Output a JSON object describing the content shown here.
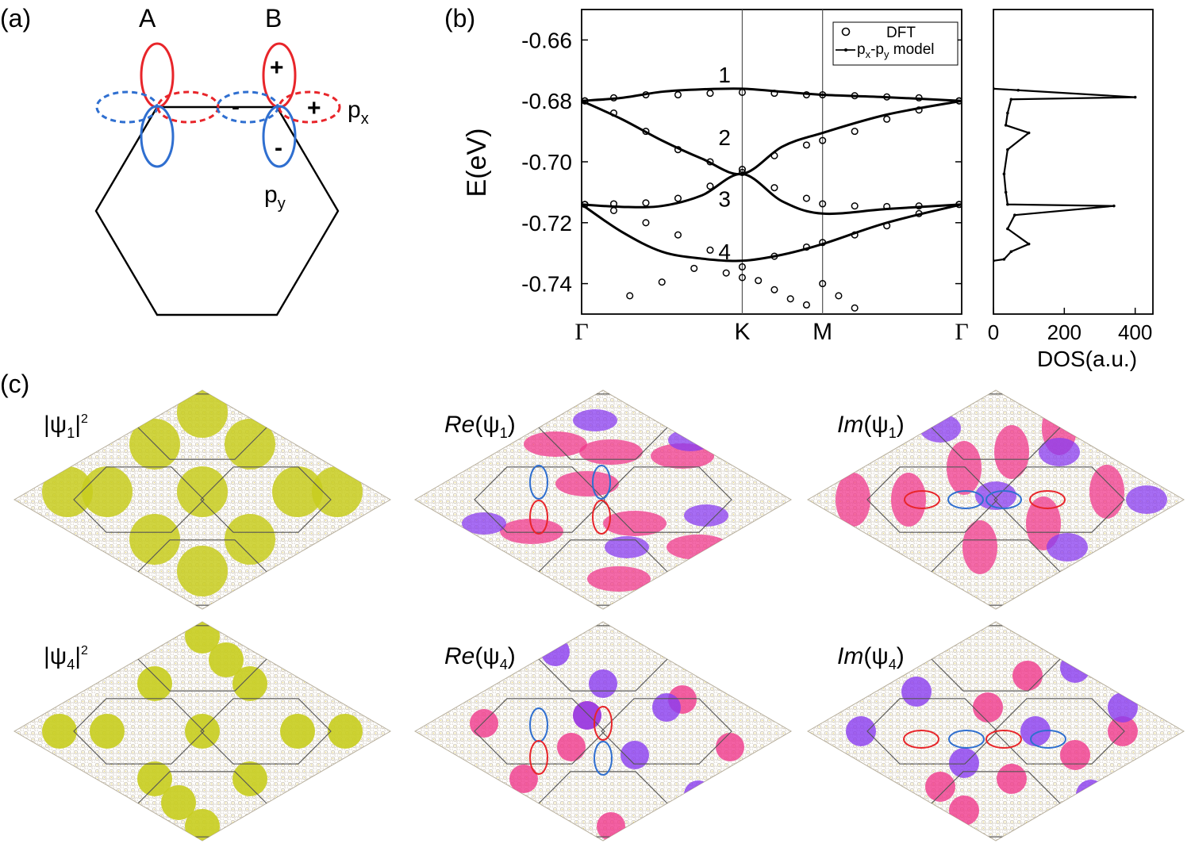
{
  "panels": {
    "a": {
      "label": "(a)",
      "site_a": "A",
      "site_b": "B",
      "plus_top": "+",
      "minus_mid": "-",
      "plus_right": "+",
      "minus_low": "-",
      "px_base": "p",
      "px_sub": "x",
      "py_base": "p",
      "py_sub": "y"
    },
    "b": {
      "label": "(b)"
    },
    "c": {
      "label": "(c)",
      "maps": [
        {
          "prefix": "|ψ",
          "sub": "1",
          "suffix": "|",
          "sup": "2",
          "fill": "#c8cd1e"
        },
        {
          "prefix": "Re",
          "paren_open": "(ψ",
          "sub": "1",
          "paren_close": ")"
        },
        {
          "prefix": "Im",
          "paren_open": "(ψ",
          "sub": "1",
          "paren_close": ")"
        },
        {
          "prefix": "|ψ",
          "sub": "4",
          "suffix": "|",
          "sup": "2",
          "fill": "#c8cd1e"
        },
        {
          "prefix": "Re",
          "paren_open": "(ψ",
          "sub": "4",
          "paren_close": ")"
        },
        {
          "prefix": "Im",
          "paren_open": "(ψ",
          "sub": "4",
          "paren_close": ")"
        }
      ]
    }
  },
  "colors": {
    "red": "#e8252a",
    "blue": "#2f6fd0",
    "pink": "#f0388c",
    "purple": "#8a3cf0",
    "lattice": "#e3dfd6",
    "yellow": "#c8cd1e"
  },
  "chart_data": [
    {
      "type": "line",
      "title": "",
      "ylabel": "E(eV)",
      "xlabel": "",
      "x_ticks": [
        "Γ",
        "K",
        "M",
        "Γ"
      ],
      "x_tick_positions": [
        0,
        1,
        1.5,
        2.366
      ],
      "y_ticks": [
        "-0.66",
        "-0.68",
        "-0.70",
        "-0.72",
        "-0.74"
      ],
      "y_tick_values": [
        -0.66,
        -0.68,
        -0.7,
        -0.72,
        -0.74
      ],
      "ylim": [
        -0.75,
        -0.65
      ],
      "legend": [
        "DFT",
        "px-py model"
      ],
      "legend_display": {
        "dft": "DFT",
        "model_base": "p",
        "model_sub1": "x",
        "model_mid": "-p",
        "model_sub2": "y",
        "model_tail": " model"
      },
      "band_labels": [
        "1",
        "2",
        "3",
        "4"
      ],
      "series": [
        {
          "name": "px-py model band 1",
          "x": [
            0,
            0.25,
            0.5,
            0.75,
            1.0,
            1.25,
            1.5,
            1.9,
            2.366
          ],
          "y": [
            -0.68,
            -0.679,
            -0.677,
            -0.6762,
            -0.676,
            -0.677,
            -0.678,
            -0.6788,
            -0.68
          ]
        },
        {
          "name": "px-py model band 2",
          "x": [
            0,
            0.25,
            0.5,
            0.75,
            1.0,
            1.25,
            1.5,
            1.9,
            2.366
          ],
          "y": [
            -0.68,
            -0.686,
            -0.693,
            -0.699,
            -0.704,
            -0.695,
            -0.6905,
            -0.6845,
            -0.68
          ]
        },
        {
          "name": "px-py model band 3",
          "x": [
            0,
            0.25,
            0.5,
            0.75,
            1.0,
            1.25,
            1.5,
            1.9,
            2.366
          ],
          "y": [
            -0.714,
            -0.7148,
            -0.7145,
            -0.711,
            -0.704,
            -0.713,
            -0.717,
            -0.7155,
            -0.714
          ]
        },
        {
          "name": "px-py model band 4",
          "x": [
            0,
            0.25,
            0.5,
            0.75,
            1.0,
            1.25,
            1.5,
            1.9,
            2.366
          ],
          "y": [
            -0.714,
            -0.723,
            -0.7295,
            -0.7318,
            -0.7325,
            -0.7305,
            -0.727,
            -0.72,
            -0.714
          ]
        },
        {
          "name": "DFT",
          "x": [
            0.02,
            0.2,
            0.4,
            0.6,
            0.8,
            1.0,
            1.2,
            1.4,
            1.5,
            1.7,
            1.9,
            2.1,
            2.35,
            0.02,
            0.2,
            0.4,
            0.6,
            0.8,
            1.0,
            1.2,
            1.4,
            1.5,
            1.7,
            1.9,
            2.1,
            2.35,
            0.02,
            0.2,
            0.4,
            0.6,
            0.8,
            1.0,
            1.2,
            1.4,
            1.5,
            1.7,
            1.9,
            2.1,
            2.35,
            0.02,
            0.2,
            0.4,
            0.6,
            0.8,
            1.0,
            1.2,
            1.4,
            1.5,
            1.7,
            1.9,
            2.1,
            2.35,
            0.3,
            0.5,
            0.7,
            0.9,
            1.0,
            1.1,
            1.2,
            1.3,
            1.4,
            1.5,
            1.6,
            1.7
          ],
          "y": [
            -0.68,
            -0.679,
            -0.678,
            -0.678,
            -0.6775,
            -0.6772,
            -0.6775,
            -0.678,
            -0.678,
            -0.6783,
            -0.6787,
            -0.679,
            -0.68,
            -0.68,
            -0.684,
            -0.69,
            -0.696,
            -0.7,
            -0.7025,
            -0.698,
            -0.6945,
            -0.693,
            -0.69,
            -0.686,
            -0.683,
            -0.68,
            -0.714,
            -0.7138,
            -0.7135,
            -0.712,
            -0.708,
            -0.7035,
            -0.7085,
            -0.712,
            -0.7138,
            -0.7145,
            -0.7147,
            -0.7145,
            -0.714,
            -0.714,
            -0.716,
            -0.72,
            -0.724,
            -0.729,
            -0.7345,
            -0.731,
            -0.728,
            -0.7265,
            -0.724,
            -0.721,
            -0.717,
            -0.714,
            -0.744,
            -0.7395,
            -0.735,
            -0.7365,
            -0.738,
            -0.739,
            -0.742,
            -0.745,
            -0.747,
            -0.74,
            -0.744,
            -0.748
          ]
        }
      ]
    },
    {
      "type": "line",
      "title": "",
      "xlabel": "DOS(a.u.)",
      "ylabel": "",
      "x_ticks": [
        "0",
        "200",
        "400"
      ],
      "x_tick_values": [
        0,
        200,
        400
      ],
      "xlim": [
        0,
        450
      ],
      "ylim": [
        -0.75,
        -0.65
      ],
      "series": [
        {
          "name": "DOS",
          "x": [
            0,
            70,
            400,
            50,
            40,
            35,
            100,
            40,
            30,
            35,
            40,
            340,
            60,
            40,
            100,
            50,
            30,
            0
          ],
          "y": [
            -0.676,
            -0.6765,
            -0.6788,
            -0.6795,
            -0.684,
            -0.688,
            -0.6905,
            -0.696,
            -0.704,
            -0.71,
            -0.714,
            -0.7145,
            -0.7175,
            -0.722,
            -0.727,
            -0.7295,
            -0.732,
            -0.7325
          ]
        }
      ]
    }
  ]
}
